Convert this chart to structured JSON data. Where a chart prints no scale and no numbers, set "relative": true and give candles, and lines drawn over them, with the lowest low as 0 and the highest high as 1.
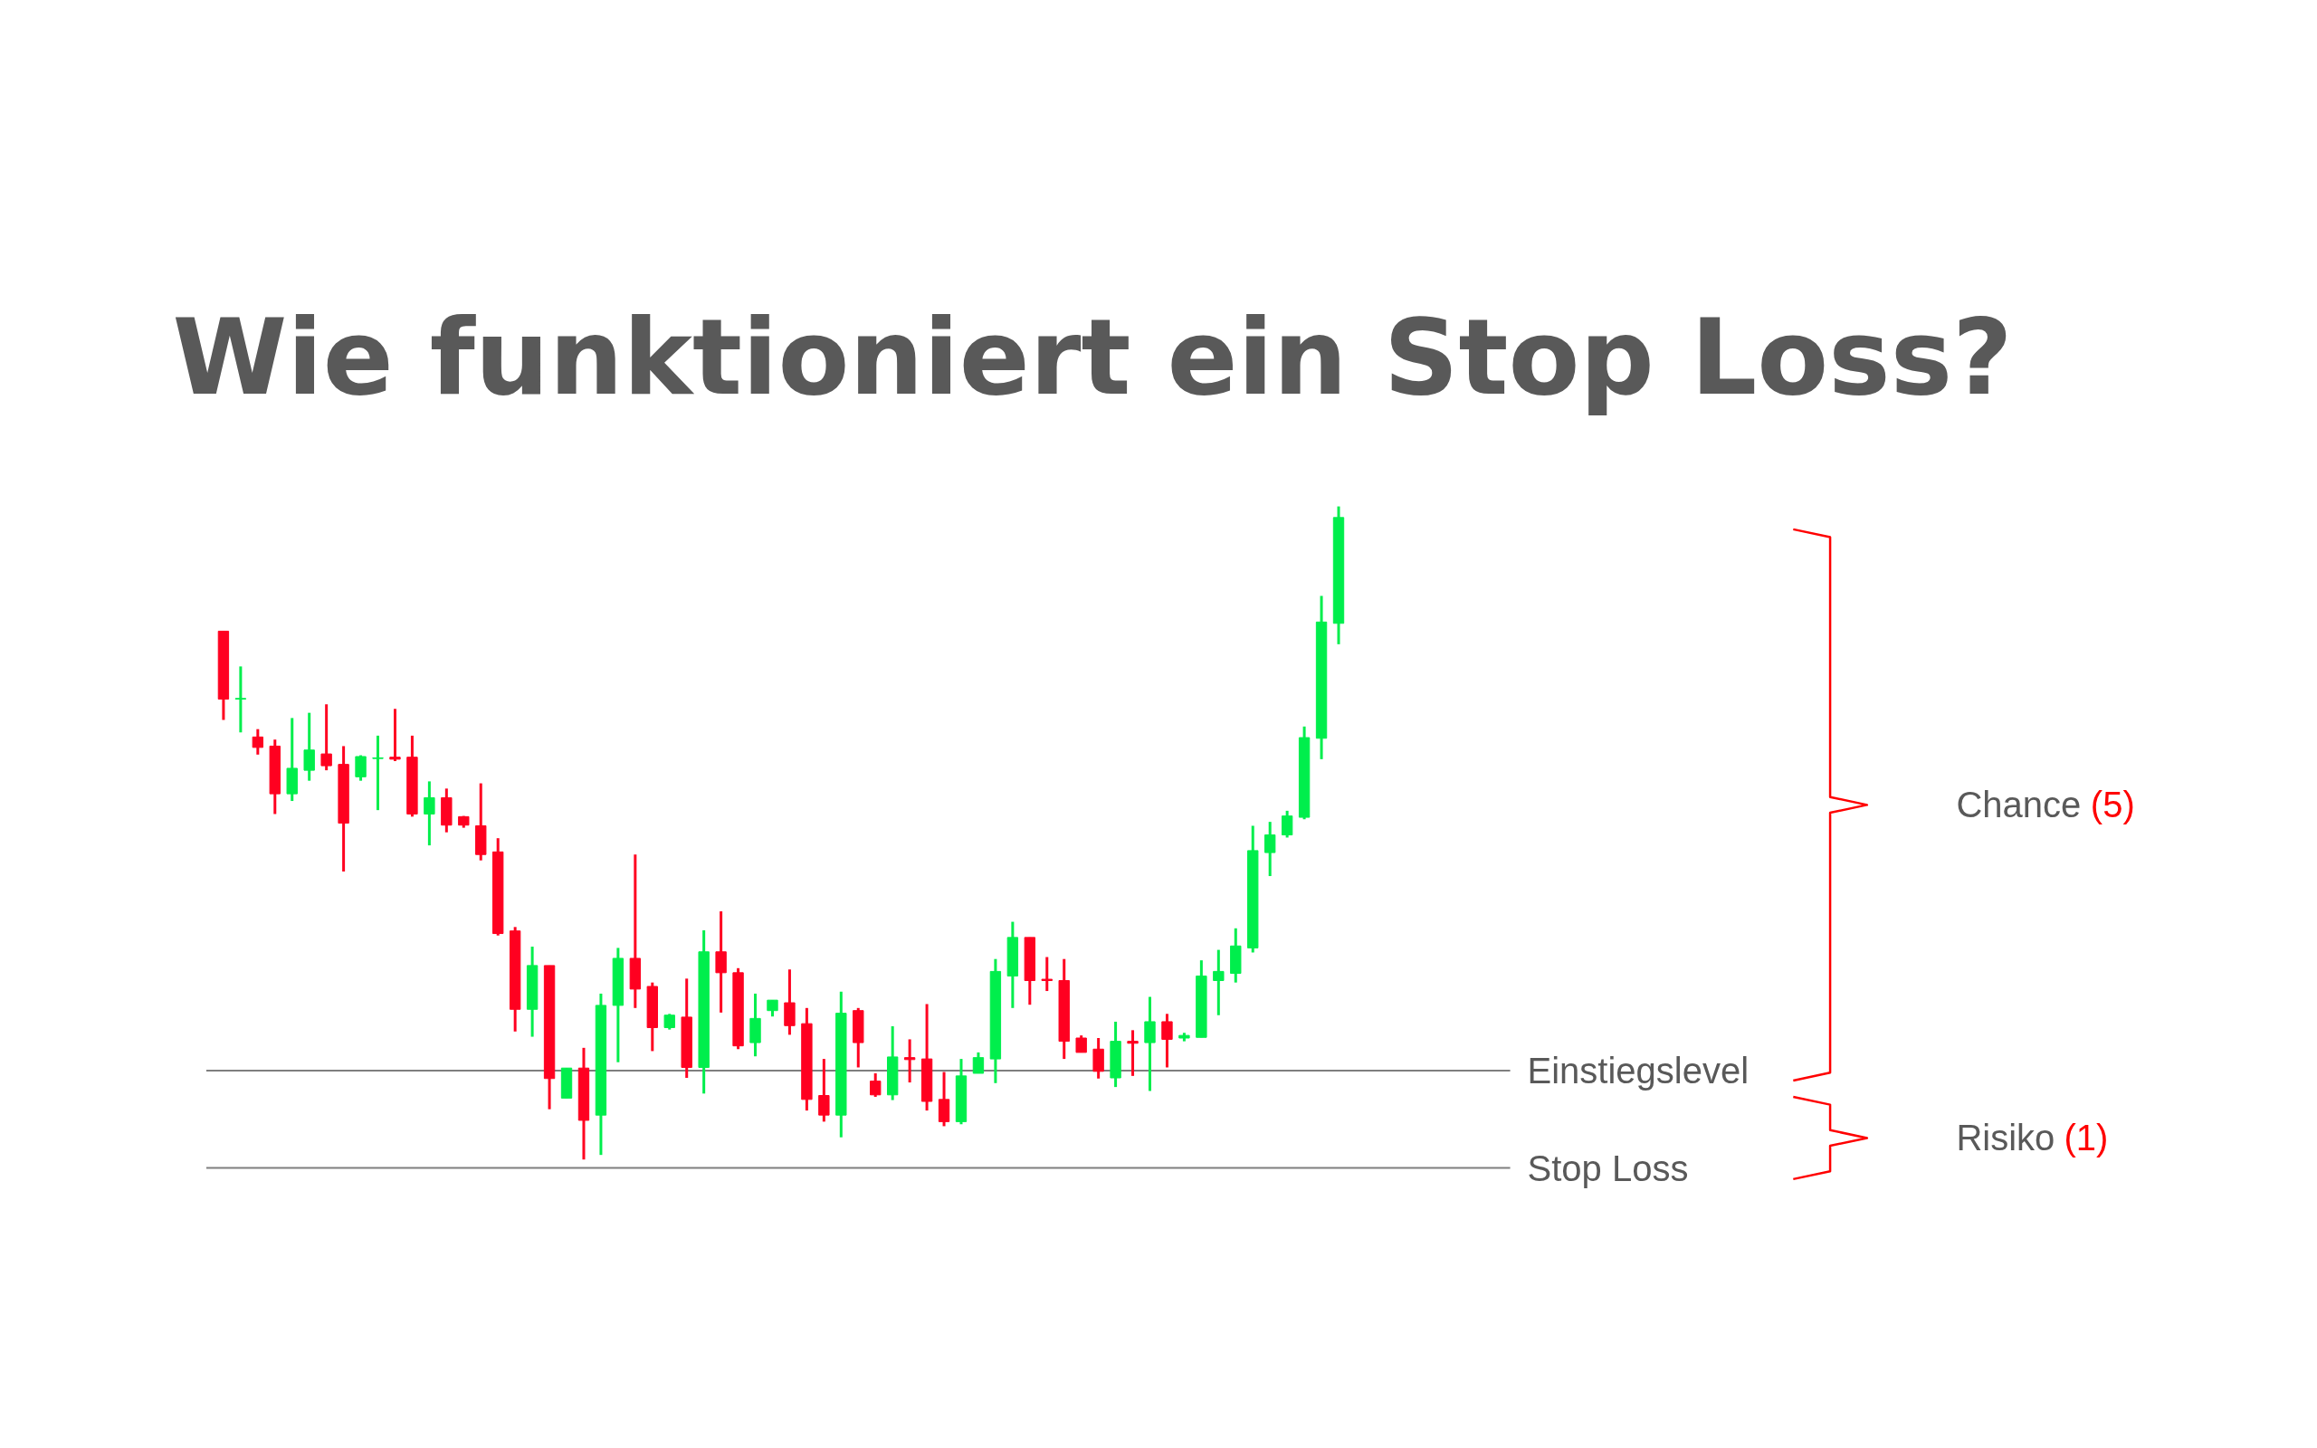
{
  "chart_data": {
    "type": "candlestick",
    "relative": true,
    "title": "Wie funktioniert ein Stop Loss?",
    "categories": [
      null,
      null,
      null,
      null,
      null,
      null,
      null,
      null,
      null,
      null,
      null,
      null,
      null,
      null,
      null,
      null,
      null,
      null,
      null,
      null,
      null,
      null,
      null,
      null,
      null,
      null,
      null,
      null,
      null,
      null,
      null,
      null,
      null,
      null,
      null,
      null,
      null,
      null,
      null,
      null,
      null,
      null,
      null,
      null,
      null,
      null,
      null,
      null,
      null,
      null,
      null,
      null,
      null,
      null,
      null,
      null,
      null,
      null,
      null,
      null,
      null,
      null,
      null,
      null,
      null,
      null
    ],
    "ohlc": [
      [
        0.809,
        0.809,
        0.673,
        0.705
      ],
      [
        0.705,
        0.755,
        0.654,
        0.706
      ],
      [
        0.647,
        0.659,
        0.62,
        0.631
      ],
      [
        0.633,
        0.643,
        0.529,
        0.56
      ],
      [
        0.56,
        0.676,
        0.549,
        0.599
      ],
      [
        0.596,
        0.684,
        0.58,
        0.627
      ],
      [
        0.621,
        0.697,
        0.596,
        0.603
      ],
      [
        0.605,
        0.633,
        0.441,
        0.515
      ],
      [
        0.586,
        0.619,
        0.58,
        0.617
      ],
      [
        0.614,
        0.649,
        0.535,
        0.615
      ],
      [
        0.616,
        0.69,
        0.61,
        0.613
      ],
      [
        0.616,
        0.649,
        0.525,
        0.529
      ],
      [
        0.529,
        0.579,
        0.481,
        0.554
      ],
      [
        0.554,
        0.568,
        0.501,
        0.512
      ],
      [
        0.525,
        0.526,
        0.508,
        0.512
      ],
      [
        0.511,
        0.576,
        0.458,
        0.467
      ],
      [
        0.471,
        0.492,
        0.343,
        0.346
      ],
      [
        0.35,
        0.356,
        0.196,
        0.23
      ],
      [
        0.23,
        0.326,
        0.188,
        0.297
      ],
      [
        0.297,
        0.297,
        0.077,
        0.124
      ],
      [
        0.094,
        0.14,
        0.094,
        0.14
      ],
      [
        0.14,
        0.171,
        0.0,
        0.06
      ],
      [
        0.068,
        0.254,
        0.007,
        0.236
      ],
      [
        0.236,
        0.324,
        0.149,
        0.308
      ],
      [
        0.308,
        0.467,
        0.232,
        0.261
      ],
      [
        0.265,
        0.271,
        0.166,
        0.202
      ],
      [
        0.202,
        0.223,
        0.199,
        0.221
      ],
      [
        0.218,
        0.277,
        0.125,
        0.141
      ],
      [
        0.141,
        0.351,
        0.101,
        0.318
      ],
      [
        0.318,
        0.38,
        0.225,
        0.286
      ],
      [
        0.286,
        0.293,
        0.169,
        0.174
      ],
      [
        0.179,
        0.254,
        0.158,
        0.216
      ],
      [
        0.228,
        0.244,
        0.219,
        0.244
      ],
      [
        0.24,
        0.291,
        0.191,
        0.205
      ],
      [
        0.208,
        0.232,
        0.075,
        0.092
      ],
      [
        0.098,
        0.154,
        0.058,
        0.068
      ],
      [
        0.068,
        0.257,
        0.034,
        0.224
      ],
      [
        0.228,
        0.232,
        0.141,
        0.179
      ],
      [
        0.12,
        0.132,
        0.096,
        0.099
      ],
      [
        0.099,
        0.204,
        0.091,
        0.157
      ],
      [
        0.156,
        0.184,
        0.118,
        0.153
      ],
      [
        0.154,
        0.238,
        0.075,
        0.089
      ],
      [
        0.092,
        0.134,
        0.051,
        0.058
      ],
      [
        0.058,
        0.154,
        0.054,
        0.128
      ],
      [
        0.132,
        0.164,
        0.132,
        0.156
      ],
      [
        0.154,
        0.307,
        0.117,
        0.288
      ],
      [
        0.281,
        0.364,
        0.232,
        0.34
      ],
      [
        0.34,
        0.34,
        0.237,
        0.274
      ],
      [
        0.276,
        0.31,
        0.258,
        0.274
      ],
      [
        0.274,
        0.307,
        0.154,
        0.181
      ],
      [
        0.186,
        0.19,
        0.164,
        0.164
      ],
      [
        0.169,
        0.186,
        0.124,
        0.135
      ],
      [
        0.125,
        0.211,
        0.111,
        0.181
      ],
      [
        0.181,
        0.198,
        0.128,
        0.178
      ],
      [
        0.179,
        0.249,
        0.105,
        0.211
      ],
      [
        0.211,
        0.223,
        0.141,
        0.184
      ],
      [
        0.186,
        0.194,
        0.181,
        0.19
      ],
      [
        0.187,
        0.305,
        0.187,
        0.281
      ],
      [
        0.274,
        0.321,
        0.221,
        0.288
      ],
      [
        0.285,
        0.354,
        0.271,
        0.327
      ],
      [
        0.324,
        0.511,
        0.317,
        0.473
      ],
      [
        0.47,
        0.517,
        0.434,
        0.497
      ],
      [
        0.497,
        0.534,
        0.493,
        0.526
      ],
      [
        0.524,
        0.663,
        0.521,
        0.646
      ],
      [
        0.645,
        0.863,
        0.613,
        0.823
      ],
      [
        0.821,
        1.0,
        0.789,
        0.983
      ]
    ],
    "colors": [
      "#ff0020",
      "#00ee4c",
      "#ff0020",
      "#ff0020",
      "#00ee4c",
      "#00ee4c",
      "#ff0020",
      "#ff0020",
      "#00ee4c",
      "#00ee4c",
      "#ff0020",
      "#ff0020",
      "#00ee4c",
      "#ff0020",
      "#ff0020",
      "#ff0020",
      "#ff0020",
      "#ff0020",
      "#00ee4c",
      "#ff0020",
      "#00ee4c",
      "#ff0020",
      "#00ee4c",
      "#00ee4c",
      "#ff0020",
      "#ff0020",
      "#00ee4c",
      "#ff0020",
      "#00ee4c",
      "#ff0020",
      "#ff0020",
      "#00ee4c",
      "#00ee4c",
      "#ff0020",
      "#ff0020",
      "#ff0020",
      "#00ee4c",
      "#ff0020",
      "#ff0020",
      "#00ee4c",
      "#ff0020",
      "#ff0020",
      "#ff0020",
      "#00ee4c",
      "#00ee4c",
      "#00ee4c",
      "#00ee4c",
      "#ff0020",
      "#ff0020",
      "#ff0020",
      "#ff0020",
      "#ff0020",
      "#00ee4c",
      "#ff0020",
      "#00ee4c",
      "#ff0020",
      "#00ee4c",
      "#00ee4c",
      "#00ee4c",
      "#00ee4c",
      "#00ee4c",
      "#00ee4c",
      "#00ee4c",
      "#00ee4c",
      "#00ee4c",
      "#00ee4c"
    ],
    "ref_lines": [
      {
        "axis": "y",
        "value": 0.136,
        "label": "Einstiegslevel",
        "color": "#7f7f7f"
      },
      {
        "axis": "y",
        "value": -0.013,
        "label": "Stop Loss",
        "color": "#7f7f7f"
      }
    ],
    "annotations": [
      "Chance (5)",
      "Risiko (1)"
    ]
  }
}
